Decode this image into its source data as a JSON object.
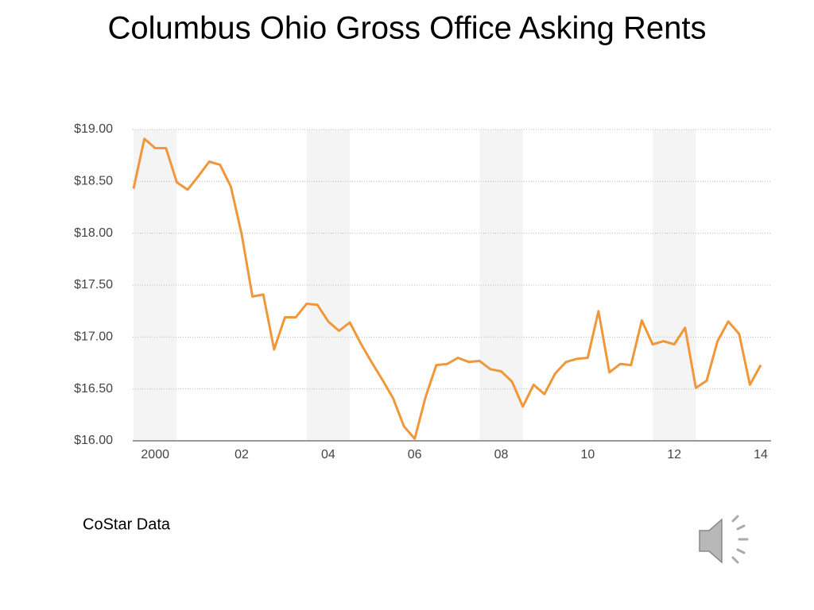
{
  "chart_data": {
    "type": "line",
    "title": "Columbus Ohio Gross Office Asking Rents",
    "note": "CoStar Data",
    "categories": [
      null,
      null,
      "2000",
      null,
      null,
      null,
      null,
      null,
      null,
      null,
      "02",
      null,
      null,
      null,
      null,
      null,
      null,
      null,
      "04",
      null,
      null,
      null,
      null,
      null,
      null,
      null,
      "06",
      null,
      null,
      null,
      null,
      null,
      null,
      null,
      "08",
      null,
      null,
      null,
      null,
      null,
      null,
      null,
      "10",
      null,
      null,
      null,
      null,
      null,
      null,
      null,
      "12",
      null,
      null,
      null,
      null,
      null,
      null,
      null,
      "14"
    ],
    "series": [
      {
        "color": "#f0973a",
        "values": [
          18.43,
          18.91,
          18.82,
          18.82,
          18.49,
          18.42,
          18.55,
          18.69,
          18.66,
          18.45,
          17.99,
          17.39,
          17.41,
          16.88,
          17.19,
          17.19,
          17.32,
          17.31,
          17.15,
          17.06,
          17.14,
          16.94,
          16.76,
          16.59,
          16.41,
          16.14,
          16.02,
          16.42,
          16.73,
          16.74,
          16.8,
          16.76,
          16.77,
          16.69,
          16.67,
          16.57,
          16.33,
          16.54,
          16.45,
          16.65,
          16.76,
          16.79,
          16.8,
          17.25,
          16.66,
          16.74,
          16.73,
          17.16,
          16.93,
          16.96,
          16.93,
          17.09,
          16.51,
          16.58,
          16.96,
          17.15,
          17.03,
          16.54,
          16.73
        ]
      }
    ],
    "ylim": [
      16,
      19
    ],
    "yticks": [
      {
        "value": 16,
        "label": "$16.00"
      },
      {
        "value": 16.5,
        "label": "$16.50"
      },
      {
        "value": 17,
        "label": "$17.00"
      },
      {
        "value": 17.5,
        "label": "$17.50"
      },
      {
        "value": 18,
        "label": "$18.00"
      },
      {
        "value": 18.5,
        "label": "$18.50"
      },
      {
        "value": 19,
        "label": "$19.00"
      }
    ],
    "grid": true
  }
}
